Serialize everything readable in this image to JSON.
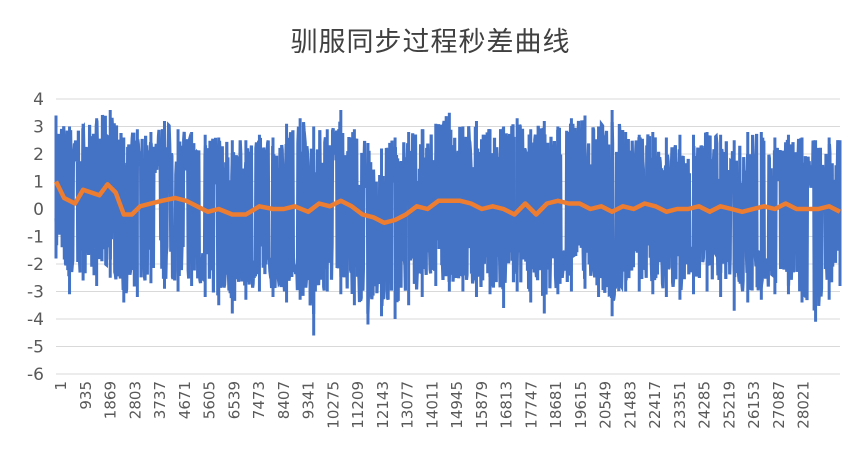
{
  "chart_data": {
    "type": "line",
    "title": "驯服同步过程秒差曲线",
    "xlabel": "",
    "ylabel": "",
    "ylim": [
      -6,
      4
    ],
    "yticks": [
      4,
      3,
      2,
      1,
      0,
      -1,
      -2,
      -3,
      -4,
      -5,
      -6
    ],
    "x_tick_labels": [
      "1",
      "935",
      "1869",
      "2803",
      "3737",
      "4671",
      "5605",
      "6539",
      "7473",
      "8407",
      "9341",
      "10275",
      "11209",
      "12143",
      "13077",
      "14011",
      "14945",
      "15879",
      "16813",
      "17747",
      "18681",
      "19615",
      "20549",
      "21483",
      "22417",
      "23351",
      "24285",
      "25219",
      "26153",
      "27087",
      "28021"
    ],
    "x_range": [
      1,
      28900
    ],
    "grid": true,
    "legend": "none",
    "series": [
      {
        "color": "#4472C4",
        "description_values": "noisy per-second difference, mostly between -3 and 3",
        "envelope": {
          "x": [
            1,
            500,
            1000,
            1500,
            2000,
            2500,
            3000,
            3500,
            4000,
            4500,
            5000,
            5500,
            6000,
            6500,
            7000,
            7500,
            8000,
            8500,
            9000,
            9500,
            10000,
            10500,
            11000,
            11500,
            12000,
            12500,
            13000,
            13500,
            14000,
            14500,
            15000,
            15500,
            16000,
            16500,
            17000,
            17500,
            18000,
            18500,
            19000,
            19500,
            20000,
            20500,
            21000,
            21500,
            22000,
            22500,
            23000,
            23500,
            24000,
            24500,
            25000,
            25500,
            26000,
            26500,
            27000,
            27500,
            28000,
            28500,
            28900
          ],
          "upper": [
            3.4,
            3.0,
            3.1,
            3.3,
            3.6,
            2.6,
            2.9,
            2.8,
            3.2,
            2.9,
            2.8,
            2.7,
            2.6,
            2.5,
            2.5,
            2.7,
            2.6,
            3.1,
            3.3,
            3.0,
            2.9,
            3.6,
            2.9,
            2.4,
            2.2,
            2.6,
            2.8,
            2.9,
            3.1,
            3.5,
            3.0,
            3.2,
            2.9,
            3.0,
            3.3,
            2.9,
            3.2,
            3.0,
            3.3,
            3.4,
            3.0,
            3.6,
            2.8,
            2.7,
            2.8,
            2.6,
            2.7,
            2.7,
            2.8,
            2.7,
            2.5,
            2.8,
            2.8,
            2.6,
            2.7,
            2.6,
            2.5,
            2.6,
            2.5
          ],
          "lower": [
            -1.8,
            -3.1,
            -2.6,
            -2.8,
            -2.5,
            -3.4,
            -3.2,
            -2.7,
            -2.9,
            -3.0,
            -2.8,
            -3.2,
            -3.5,
            -3.8,
            -3.3,
            -3.0,
            -3.2,
            -3.4,
            -3.3,
            -4.6,
            -3.0,
            -3.1,
            -3.5,
            -4.2,
            -3.9,
            -4.0,
            -3.5,
            -3.2,
            -2.8,
            -3.0,
            -3.0,
            -3.2,
            -3.1,
            -3.6,
            -3.0,
            -3.4,
            -3.8,
            -3.1,
            -3.0,
            -2.9,
            -3.2,
            -3.9,
            -3.0,
            -3.0,
            -3.1,
            -3.2,
            -3.3,
            -3.1,
            -3.0,
            -3.2,
            -3.7,
            -3.4,
            -3.3,
            -3.1,
            -3.1,
            -3.4,
            -4.1,
            -3.3,
            -2.8
          ]
        }
      },
      {
        "color": "#ED7D31",
        "description_values": "smoothed trend",
        "x": [
          1,
          300,
          700,
          1000,
          1300,
          1600,
          1900,
          2200,
          2500,
          2800,
          3100,
          3500,
          3900,
          4400,
          4800,
          5200,
          5600,
          6000,
          6500,
          7000,
          7500,
          8000,
          8400,
          8800,
          9300,
          9700,
          10100,
          10500,
          10900,
          11300,
          11700,
          12100,
          12500,
          12900,
          13300,
          13700,
          14100,
          14500,
          14900,
          15300,
          15700,
          16100,
          16500,
          16900,
          17300,
          17700,
          18100,
          18500,
          18900,
          19300,
          19700,
          20100,
          20500,
          20900,
          21300,
          21700,
          22100,
          22500,
          22900,
          23300,
          23700,
          24100,
          24500,
          24900,
          25300,
          25700,
          26100,
          26500,
          26900,
          27300,
          27700,
          28100,
          28500,
          28900
        ],
        "values": [
          1.0,
          0.4,
          0.2,
          0.7,
          0.6,
          0.5,
          0.9,
          0.6,
          -0.2,
          -0.2,
          0.1,
          0.2,
          0.3,
          0.4,
          0.3,
          0.1,
          -0.1,
          0.0,
          -0.2,
          -0.2,
          0.1,
          0.0,
          0.0,
          0.1,
          -0.1,
          0.2,
          0.1,
          0.3,
          0.1,
          -0.2,
          -0.3,
          -0.5,
          -0.4,
          -0.2,
          0.1,
          0.0,
          0.3,
          0.3,
          0.3,
          0.2,
          0.0,
          0.1,
          0.0,
          -0.2,
          0.2,
          -0.2,
          0.2,
          0.3,
          0.2,
          0.2,
          0.0,
          0.1,
          -0.1,
          0.1,
          0.0,
          0.2,
          0.1,
          -0.1,
          0.0,
          0.0,
          0.1,
          -0.1,
          0.1,
          0.0,
          -0.1,
          0.0,
          0.1,
          0.0,
          0.2,
          0.0,
          0.0,
          0.0,
          0.1,
          -0.1
        ]
      }
    ]
  }
}
